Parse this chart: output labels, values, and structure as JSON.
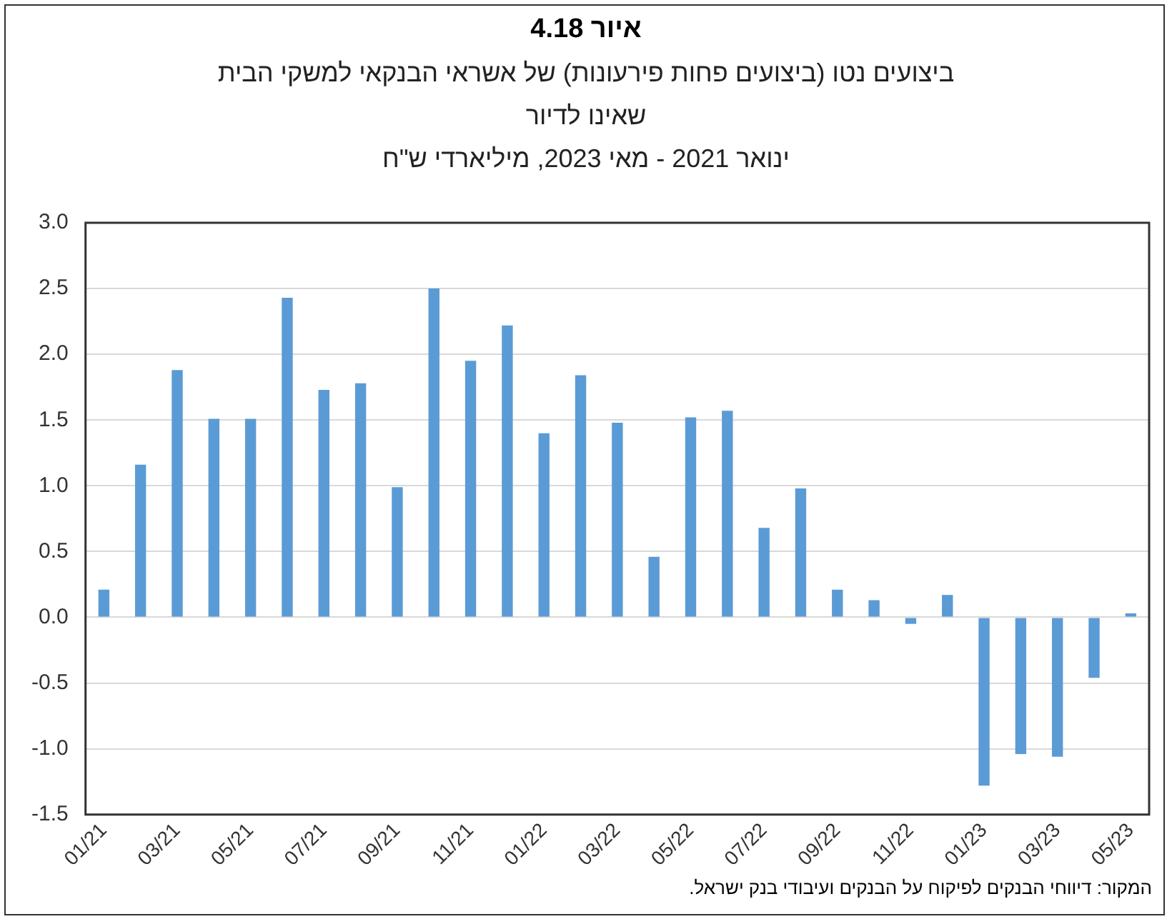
{
  "chart_data": {
    "type": "bar",
    "title": "איור 4.18",
    "subtitle": "ביצועים נטו (ביצועים פחות פירעונות) של אשראי הבנקאי למשקי הבית\nשאינו לדיור\nינואר 2021 - מאי 2023, מיליארדי ש\"ח",
    "categories": [
      "01/21",
      null,
      "03/21",
      null,
      "05/21",
      null,
      "07/21",
      null,
      "09/21",
      null,
      "11/21",
      null,
      "01/22",
      null,
      "03/22",
      null,
      "05/22",
      null,
      "07/22",
      null,
      "09/22",
      null,
      "11/22",
      null,
      "01/23",
      null,
      "03/23",
      null,
      "05/23"
    ],
    "values": [
      0.21,
      1.16,
      1.88,
      1.51,
      1.51,
      2.43,
      1.73,
      1.78,
      0.99,
      2.5,
      1.95,
      2.22,
      1.4,
      1.84,
      1.48,
      0.46,
      1.52,
      1.57,
      0.68,
      0.98,
      0.21,
      0.13,
      -0.05,
      0.17,
      -1.28,
      -1.04,
      -1.06,
      -0.46,
      0.03
    ],
    "color": "#5b9bd5",
    "ylim": [
      -1.5,
      3
    ],
    "yticks": [
      {
        "value": -1.5,
        "label": "-1.5"
      },
      {
        "value": -1,
        "label": "-1.0"
      },
      {
        "value": -0.5,
        "label": "-0.5"
      },
      {
        "value": 0,
        "label": "0.0"
      },
      {
        "value": 0.5,
        "label": "0.5"
      },
      {
        "value": 1,
        "label": "1.0"
      },
      {
        "value": 1.5,
        "label": "1.5"
      },
      {
        "value": 2,
        "label": "2.0"
      },
      {
        "value": 2.5,
        "label": "2.5"
      },
      {
        "value": 3,
        "label": "3.0"
      }
    ],
    "grid": "y",
    "legend": false,
    "annotations": [
      "המקור: דיווחי הבנקים לפיקוח על הבנקים ועיבודי בנק ישראל."
    ]
  }
}
